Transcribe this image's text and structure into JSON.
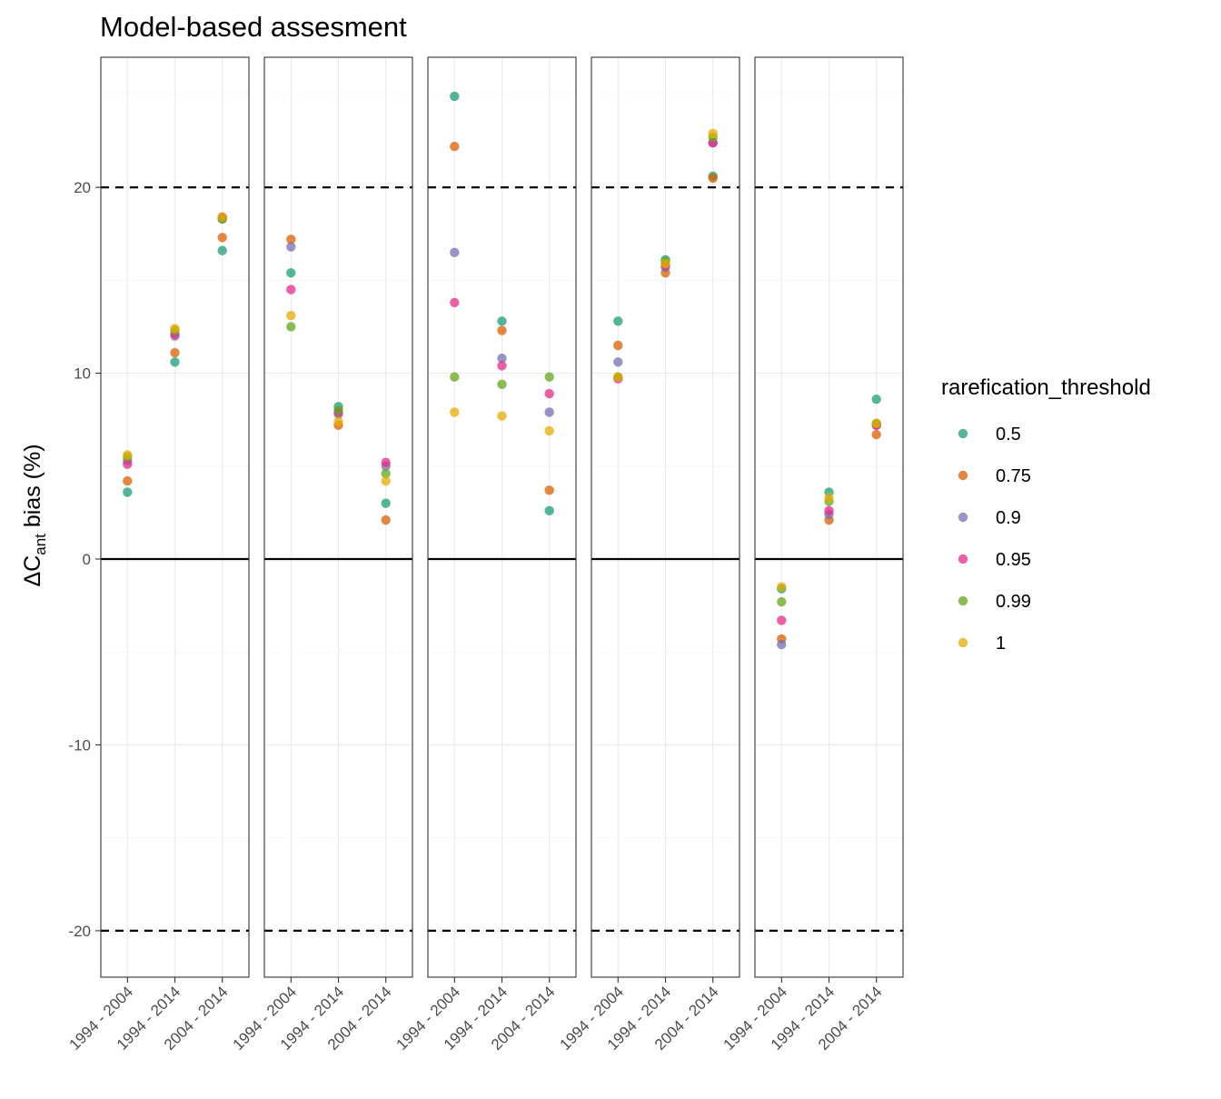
{
  "chart_data": {
    "type": "scatter",
    "title": "Model-based assesment",
    "ylabel": {
      "prefix": "ΔC",
      "subscript": "ant",
      "suffix": " bias (%)"
    },
    "xlabel": "",
    "ylim": [
      -22.5,
      27.0
    ],
    "y_ticks": [
      -20,
      -10,
      0,
      10,
      20
    ],
    "categories": [
      "1994 - 2004",
      "1994 - 2014",
      "2004 - 2014"
    ],
    "grid": true,
    "reference_lines": [
      {
        "y": 0,
        "style": "solid"
      },
      {
        "y": 20,
        "style": "dashed"
      },
      {
        "y": -20,
        "style": "dashed"
      }
    ],
    "legend": {
      "title": "rarefication_threshold",
      "position": "right",
      "entries": [
        {
          "label": "0.5",
          "color": "#1b9e77"
        },
        {
          "label": "0.75",
          "color": "#d95f02"
        },
        {
          "label": "0.9",
          "color": "#7570b3"
        },
        {
          "label": "0.95",
          "color": "#e7298a"
        },
        {
          "label": "0.99",
          "color": "#66a61e"
        },
        {
          "label": "1",
          "color": "#e6ab02"
        }
      ]
    },
    "panels": [
      {
        "series": [
          {
            "name": "0.5",
            "values": [
              3.6,
              10.6,
              16.6
            ]
          },
          {
            "name": "0.75",
            "values": [
              4.2,
              11.1,
              17.3
            ]
          },
          {
            "name": "0.9",
            "values": [
              5.3,
              12.0,
              18.3
            ]
          },
          {
            "name": "0.95",
            "values": [
              5.1,
              12.1,
              18.4
            ]
          },
          {
            "name": "0.99",
            "values": [
              5.5,
              12.3,
              18.3
            ]
          },
          {
            "name": "1",
            "values": [
              5.6,
              12.4,
              18.4
            ]
          }
        ]
      },
      {
        "series": [
          {
            "name": "0.5",
            "values": [
              15.4,
              8.2,
              3.0
            ]
          },
          {
            "name": "0.75",
            "values": [
              17.2,
              7.2,
              2.1
            ]
          },
          {
            "name": "0.9",
            "values": [
              16.8,
              7.8,
              5.0
            ]
          },
          {
            "name": "0.95",
            "values": [
              14.5,
              7.9,
              5.2
            ]
          },
          {
            "name": "0.99",
            "values": [
              12.5,
              8.0,
              4.6
            ]
          },
          {
            "name": "1",
            "values": [
              13.1,
              7.4,
              4.2
            ]
          }
        ]
      },
      {
        "series": [
          {
            "name": "0.5",
            "values": [
              24.9,
              12.8,
              2.6
            ]
          },
          {
            "name": "0.75",
            "values": [
              22.2,
              12.3,
              3.7
            ]
          },
          {
            "name": "0.9",
            "values": [
              16.5,
              10.8,
              7.9
            ]
          },
          {
            "name": "0.95",
            "values": [
              13.8,
              10.4,
              8.9
            ]
          },
          {
            "name": "0.99",
            "values": [
              9.8,
              9.4,
              9.8
            ]
          },
          {
            "name": "1",
            "values": [
              7.9,
              7.7,
              6.9
            ]
          }
        ]
      },
      {
        "series": [
          {
            "name": "0.5",
            "values": [
              12.8,
              16.1,
              20.6
            ]
          },
          {
            "name": "0.75",
            "values": [
              11.5,
              15.4,
              20.5
            ]
          },
          {
            "name": "0.9",
            "values": [
              10.6,
              15.7,
              22.4
            ]
          },
          {
            "name": "0.95",
            "values": [
              9.7,
              15.8,
              22.4
            ]
          },
          {
            "name": "0.99",
            "values": [
              9.8,
              16.0,
              22.7
            ]
          },
          {
            "name": "1",
            "values": [
              9.8,
              15.9,
              22.9
            ]
          }
        ]
      },
      {
        "series": [
          {
            "name": "0.5",
            "values": [
              -1.6,
              3.6,
              8.6
            ]
          },
          {
            "name": "0.75",
            "values": [
              -4.3,
              2.1,
              6.7
            ]
          },
          {
            "name": "0.9",
            "values": [
              -4.6,
              2.4,
              7.2
            ]
          },
          {
            "name": "0.95",
            "values": [
              -3.3,
              2.6,
              7.2
            ]
          },
          {
            "name": "0.99",
            "values": [
              -2.3,
              3.1,
              7.3
            ]
          },
          {
            "name": "1",
            "values": [
              -1.5,
              3.3,
              7.3
            ]
          }
        ]
      }
    ]
  }
}
